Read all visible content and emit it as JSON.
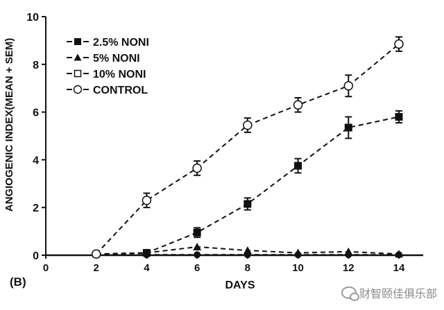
{
  "panel_label": "(B)",
  "watermark": "财智颐佳俱乐部",
  "chart_data": {
    "type": "line",
    "title": "",
    "xlabel": "DAYS",
    "ylabel": "ANGIOGENIC INDEX(MEAN + SEM)",
    "xlim": [
      0,
      14
    ],
    "ylim": [
      0,
      10
    ],
    "x_ticks": [
      0,
      2,
      4,
      6,
      8,
      10,
      12,
      14
    ],
    "y_ticks": [
      0,
      2,
      4,
      6,
      8,
      10
    ],
    "grid": false,
    "legend_position": "top-left",
    "series": [
      {
        "name": "2.5% NONI",
        "marker": "filled-square",
        "line_style": "dashed",
        "color": "#111111",
        "x": [
          2,
          4,
          6,
          8,
          10,
          12,
          14
        ],
        "y": [
          0.05,
          0.1,
          0.95,
          2.15,
          3.75,
          5.35,
          5.8
        ],
        "err": [
          0,
          0.05,
          0.2,
          0.25,
          0.3,
          0.45,
          0.25
        ]
      },
      {
        "name": "5% NONI",
        "marker": "filled-triangle",
        "line_style": "dashed",
        "color": "#111111",
        "x": [
          2,
          4,
          6,
          8,
          10,
          12,
          14
        ],
        "y": [
          0.05,
          0.1,
          0.35,
          0.2,
          0.1,
          0.15,
          0.05
        ],
        "err": [
          0,
          0,
          0,
          0,
          0,
          0,
          0
        ]
      },
      {
        "name": "10% NONI",
        "marker": "open-square",
        "line_style": "dashed",
        "color": "#111111",
        "x": [
          2,
          4,
          6,
          8,
          10,
          12,
          14
        ],
        "y": [
          0.02,
          0.02,
          0.02,
          0.02,
          0.02,
          0.02,
          0.02
        ],
        "err": [
          0,
          0,
          0,
          0,
          0,
          0,
          0
        ]
      },
      {
        "name": "CONTROL",
        "marker": "open-circle",
        "line_style": "dashed",
        "color": "#111111",
        "x": [
          2,
          4,
          6,
          8,
          10,
          12,
          14
        ],
        "y": [
          0.05,
          2.3,
          3.65,
          5.45,
          6.3,
          7.1,
          8.85
        ],
        "err": [
          0,
          0.3,
          0.3,
          0.3,
          0.3,
          0.45,
          0.3
        ]
      }
    ]
  }
}
